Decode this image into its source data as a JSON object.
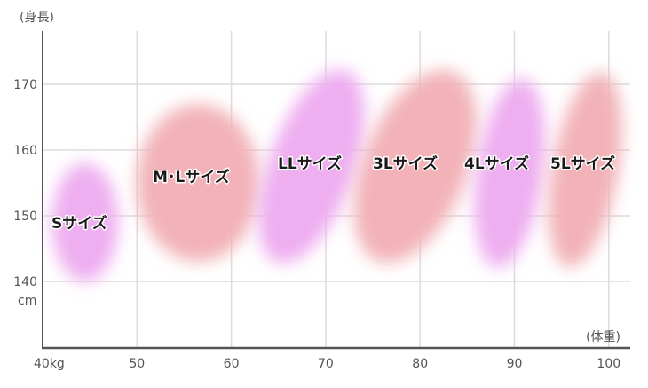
{
  "chart_data": {
    "type": "scatter",
    "ylabel": "(身長)",
    "xlabel": "(体重)",
    "y_unit": "cm",
    "x_unit": "kg",
    "xlim": [
      40,
      101
    ],
    "ylim": [
      130,
      178
    ],
    "x_ticks": [
      40,
      50,
      60,
      70,
      80,
      90,
      100
    ],
    "y_ticks": [
      140,
      150,
      160,
      170
    ],
    "grid": true,
    "colors": {
      "purple": "#eeaef0",
      "pink": "#f2b2b8"
    },
    "regions": [
      {
        "label": "Sサイズ",
        "weight_range": [
          41,
          48
        ],
        "height_range": [
          140,
          158
        ],
        "color": "purple"
      },
      {
        "label": "M･Lサイズ",
        "weight_range": [
          50,
          63
        ],
        "height_range": [
          143,
          167
        ],
        "color": "pink"
      },
      {
        "label": "LLサイズ",
        "weight_range": [
          64,
          73
        ],
        "height_range": [
          142,
          173
        ],
        "color": "purple"
      },
      {
        "label": "3Lサイズ",
        "weight_range": [
          74,
          85
        ],
        "height_range": [
          142,
          173
        ],
        "color": "pink"
      },
      {
        "label": "4Lサイズ",
        "weight_range": [
          86,
          93
        ],
        "height_range": [
          142,
          171
        ],
        "color": "purple"
      },
      {
        "label": "5Lサイズ",
        "weight_range": [
          94,
          101
        ],
        "height_range": [
          142,
          172
        ],
        "color": "pink"
      }
    ]
  }
}
